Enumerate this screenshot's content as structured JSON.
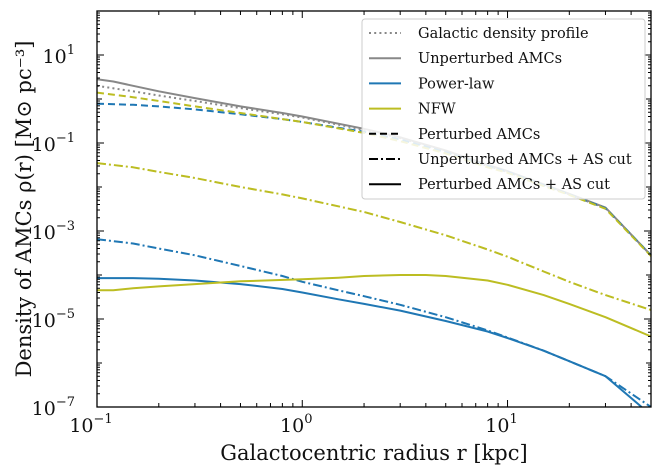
{
  "chart_data": {
    "type": "line",
    "xlabel": "Galactocentric radius r [kpc]",
    "ylabel": "Density of AMCs ρ(r) [M⊙ pc⁻³]",
    "x_scale": "log",
    "y_scale": "log",
    "xlim": [
      0.1,
      50
    ],
    "ylim": [
      1e-07,
      100
    ],
    "x_ticks": [
      {
        "value": 0.1,
        "mantissa": "10",
        "exp": "−1"
      },
      {
        "value": 1,
        "mantissa": "10",
        "exp": "0"
      },
      {
        "value": 10,
        "mantissa": "10",
        "exp": "1"
      }
    ],
    "y_ticks": [
      {
        "value": 1e-07,
        "mantissa": "10",
        "exp": "−7"
      },
      {
        "value": 1e-05,
        "mantissa": "10",
        "exp": "−5"
      },
      {
        "value": 0.001,
        "mantissa": "10",
        "exp": "−3"
      },
      {
        "value": 0.1,
        "mantissa": "10",
        "exp": "−1"
      },
      {
        "value": 10,
        "mantissa": "10",
        "exp": "1"
      }
    ],
    "legend_position": "top-right",
    "legend": [
      {
        "label": "Galactic density profile",
        "style": "dotted",
        "color": "#888888"
      },
      {
        "label": "Unperturbed AMCs",
        "style": "solid",
        "color": "#888888"
      },
      {
        "label": "Power-law",
        "style": "solid",
        "color": "#1f77b4"
      },
      {
        "label": "NFW",
        "style": "solid",
        "color": "#bcbd22"
      },
      {
        "label": "Perturbed AMCs",
        "style": "dashed",
        "color": "#000000"
      },
      {
        "label": "Unperturbed AMCs + AS cut",
        "style": "dashdot",
        "color": "#000000"
      },
      {
        "label": "Perturbed AMCs + AS cut",
        "style": "solid",
        "color": "#000000"
      }
    ],
    "series": [
      {
        "style": "dotted",
        "color": "#888888",
        "x": [
          0.1,
          0.15,
          0.2,
          0.3,
          0.5,
          0.8,
          1,
          2,
          3,
          5,
          8,
          10,
          15,
          20,
          30,
          50
        ],
        "y": [
          2.0,
          1.5,
          1.2,
          0.9,
          0.62,
          0.45,
          0.38,
          0.2,
          0.13,
          0.065,
          0.03,
          0.022,
          0.011,
          0.0068,
          0.0033,
          0.00028
        ]
      },
      {
        "style": "solid",
        "color": "#888888",
        "x": [
          0.1,
          0.12,
          0.15,
          0.2,
          0.3,
          0.5,
          0.8,
          1,
          2,
          3,
          5,
          8,
          10,
          15,
          20,
          30,
          50
        ],
        "y": [
          2.8,
          2.5,
          2.0,
          1.5,
          1.05,
          0.68,
          0.48,
          0.4,
          0.21,
          0.135,
          0.068,
          0.032,
          0.023,
          0.0115,
          0.007,
          0.0034,
          0.00028
        ]
      },
      {
        "style": "dashed",
        "color": "#1f77b4",
        "x": [
          0.1,
          0.15,
          0.2,
          0.3,
          0.5,
          0.8,
          1,
          2,
          3,
          5,
          8,
          10,
          15,
          20,
          30,
          50
        ],
        "y": [
          0.78,
          0.74,
          0.68,
          0.58,
          0.45,
          0.35,
          0.3,
          0.18,
          0.12,
          0.062,
          0.03,
          0.022,
          0.011,
          0.0068,
          0.0033,
          0.00028
        ]
      },
      {
        "style": "dashed",
        "color": "#bcbd22",
        "x": [
          0.1,
          0.15,
          0.2,
          0.3,
          0.5,
          0.8,
          1,
          2,
          3,
          5,
          8,
          10,
          15,
          20,
          30,
          50
        ],
        "y": [
          1.4,
          1.1,
          0.9,
          0.68,
          0.48,
          0.35,
          0.3,
          0.17,
          0.11,
          0.058,
          0.028,
          0.021,
          0.0105,
          0.0066,
          0.0032,
          0.00027
        ]
      },
      {
        "style": "dashdot",
        "color": "#bcbd22",
        "x": [
          0.1,
          0.15,
          0.2,
          0.3,
          0.5,
          0.8,
          1,
          2,
          3,
          5,
          8,
          10,
          15,
          20,
          30,
          50
        ],
        "y": [
          0.035,
          0.028,
          0.022,
          0.016,
          0.01,
          0.0068,
          0.0055,
          0.0027,
          0.0016,
          0.0008,
          0.00038,
          0.00026,
          0.00012,
          7e-05,
          3.5e-05,
          1.6e-05
        ]
      },
      {
        "style": "dashdot",
        "color": "#1f77b4",
        "x": [
          0.1,
          0.15,
          0.2,
          0.3,
          0.5,
          0.8,
          1,
          1.5,
          2,
          3,
          5,
          8,
          10,
          15,
          20,
          30,
          50
        ],
        "y": [
          0.00065,
          0.00052,
          0.0004,
          0.00028,
          0.00016,
          9.5e-05,
          7e-05,
          4.5e-05,
          3.3e-05,
          2.1e-05,
          1.1e-05,
          5.5e-06,
          3.8e-06,
          1.9e-06,
          1.1e-06,
          5e-07,
          1e-07
        ]
      },
      {
        "style": "solid",
        "color": "#1f77b4",
        "x": [
          0.1,
          0.15,
          0.2,
          0.3,
          0.5,
          0.8,
          1,
          1.5,
          2,
          3,
          5,
          8,
          10,
          15,
          20,
          30,
          45
        ],
        "y": [
          8.5e-05,
          8.5e-05,
          8.2e-05,
          7.5e-05,
          6.2e-05,
          4.8e-05,
          4e-05,
          2.8e-05,
          2.2e-05,
          1.55e-05,
          9e-06,
          5.2e-06,
          3.7e-06,
          1.9e-06,
          1.1e-06,
          5e-07,
          1e-07
        ]
      },
      {
        "style": "solid",
        "color": "#bcbd22",
        "x": [
          0.1,
          0.12,
          0.15,
          0.2,
          0.3,
          0.5,
          1,
          1.5,
          2,
          3,
          4,
          5,
          8,
          10,
          15,
          20,
          30,
          50
        ],
        "y": [
          4.5e-05,
          4.5e-05,
          5e-05,
          5.5e-05,
          6.2e-05,
          7.2e-05,
          8e-05,
          8.7e-05,
          9.5e-05,
          0.0001,
          0.0001,
          9.5e-05,
          7.5e-05,
          6e-05,
          3.5e-05,
          2.2e-05,
          1.1e-05,
          4e-06
        ]
      }
    ]
  }
}
